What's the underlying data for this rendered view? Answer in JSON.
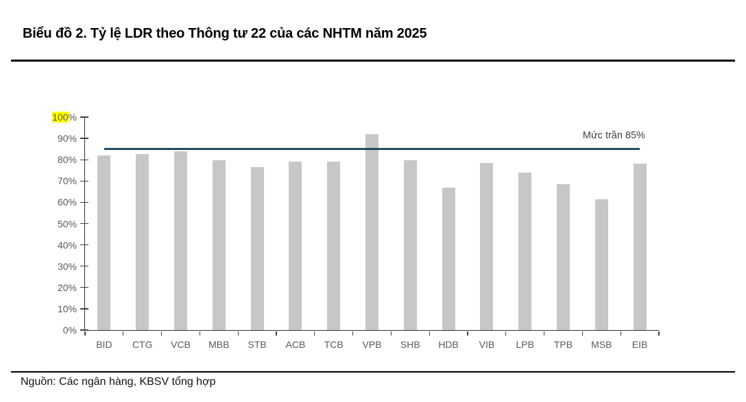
{
  "header": {
    "title": "Biểu đồ 2. Tỷ lệ LDR theo Thông tư 22 của các NHTM năm 2025"
  },
  "footer": {
    "source": "Nguồn: Các ngân hàng, KBSV tổng hợp"
  },
  "chart_data": {
    "type": "bar",
    "title": "Biểu đồ 2. Tỷ lệ LDR theo Thông tư 22 của các NHTM năm 2025",
    "categories": [
      "BID",
      "CTG",
      "VCB",
      "MBB",
      "STB",
      "ACB",
      "TCB",
      "VPB",
      "SHB",
      "HDB",
      "VIB",
      "LPB",
      "TPB",
      "MSB",
      "EIB"
    ],
    "values": [
      82,
      82.5,
      84,
      79.8,
      76.5,
      79,
      79,
      92,
      79.8,
      67,
      78.5,
      74,
      68.5,
      61.5,
      78
    ],
    "xlabel": "",
    "ylabel": "",
    "ylim": [
      0,
      100
    ],
    "yticks": [
      0,
      10,
      20,
      30,
      40,
      50,
      60,
      70,
      80,
      90,
      100
    ],
    "ytick_suffix": "%",
    "ytick_highlight": 100,
    "threshold": {
      "value": 85,
      "label": "Mức trần 85%"
    },
    "legend": "none",
    "grid": false,
    "bar_color": "#c7c7c7",
    "threshold_color": "#1f4e5f",
    "highlight_color": "#ffff00",
    "source": "Nguồn: Các ngân hàng, KBSV tổng hợp"
  }
}
